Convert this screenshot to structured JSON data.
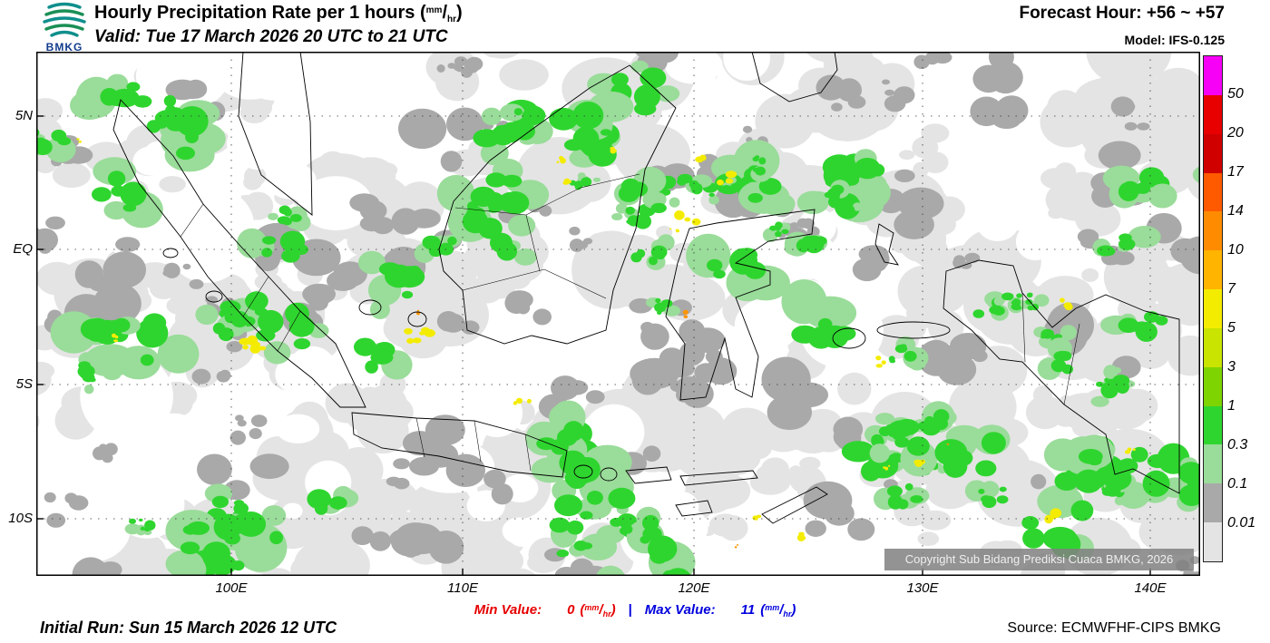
{
  "header": {
    "logo": {
      "text": "BMKG"
    },
    "title_prefix": "Hourly Precipitation Rate per 1 hours",
    "unit": {
      "open": "(",
      "num": "mm",
      "slash": "/",
      "den": "hr",
      "close": ")"
    },
    "valid": "Valid: Tue 17 March 2026 20 UTC to 21 UTC",
    "forecast_hour": "Forecast Hour: +56 ~ +57",
    "model": "Model: IFS-0.125"
  },
  "map": {
    "lat_labels": [
      "5N",
      "EQ",
      "5S",
      "10S"
    ],
    "lon_labels": [
      "100E",
      "110E",
      "120E",
      "130E",
      "140E"
    ],
    "copyright": "Copyright Sub Bidang Prediksi Cuaca BMKG, 2026"
  },
  "legend": {
    "tick_values": [
      "50",
      "20",
      "17",
      "14",
      "10",
      "7",
      "5",
      "3",
      "1",
      "0.3",
      "0.1",
      "0.01"
    ],
    "colors": [
      "#f600f6",
      "#e80000",
      "#d00000",
      "#ff5a00",
      "#ff8c00",
      "#ffb400",
      "#f4ec00",
      "#c8e400",
      "#7ed400",
      "#2fd52f",
      "#9adc9a",
      "#a9a9a9",
      "#e4e4e4"
    ]
  },
  "stats": {
    "min_label": "Min Value:",
    "min_value": "0",
    "separator": "|",
    "max_label": "Max Value:",
    "max_value": "11"
  },
  "footer": {
    "initial_run": "Initial Run: Sun 15 March 2026 12 UTC",
    "source": "Source: ECMWFHF-CIPS BMKG"
  },
  "colors": {
    "min": "#e60000",
    "max": "#0000dd"
  },
  "map_colors": {
    "light": "#e4e4e4",
    "gray": "#a9a9a9",
    "palegreen": "#9adc9a",
    "green": "#2fd52f",
    "yellow": "#f4ec00",
    "orange": "#ff9400"
  }
}
